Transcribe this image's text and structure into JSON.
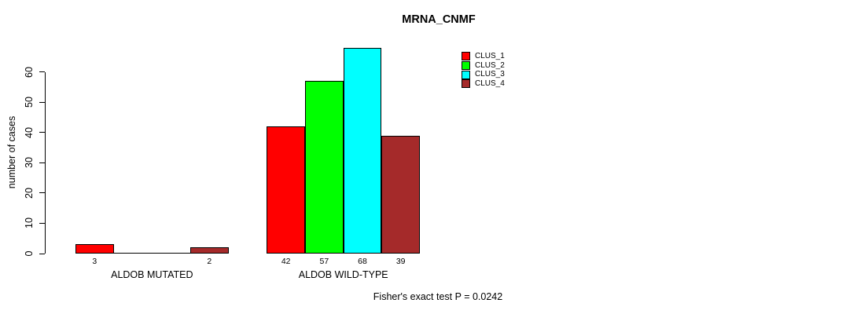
{
  "title": "MRNA_CNMF",
  "ylabel": "number of cases",
  "footer": "Fisher's exact test P = 0.0242",
  "chart_data": {
    "type": "bar",
    "grouped": true,
    "title": "MRNA_CNMF",
    "xlabel": "",
    "ylabel": "number of cases",
    "ylim": [
      0,
      60
    ],
    "yticks": [
      0,
      10,
      20,
      30,
      40,
      50,
      60
    ],
    "grid": false,
    "legend_position": "top-right",
    "categories": [
      "ALDOB MUTATED",
      "ALDOB WILD-TYPE"
    ],
    "series": [
      {
        "name": "CLUS_1",
        "color": "#FF0000",
        "values": [
          3,
          42
        ]
      },
      {
        "name": "CLUS_2",
        "color": "#00FF00",
        "values": [
          0,
          57
        ]
      },
      {
        "name": "CLUS_3",
        "color": "#00FFFF",
        "values": [
          0,
          68
        ]
      },
      {
        "name": "CLUS_4",
        "color": "#A52A2A",
        "values": [
          2,
          39
        ]
      }
    ],
    "bar_labels": [
      [
        "3",
        "",
        "",
        "2"
      ],
      [
        "42",
        "57",
        "68",
        "39"
      ]
    ],
    "annotation": "Fisher's exact test P = 0.0242",
    "bar_border_color": "#000000",
    "background_color": "#FFFFFF"
  }
}
